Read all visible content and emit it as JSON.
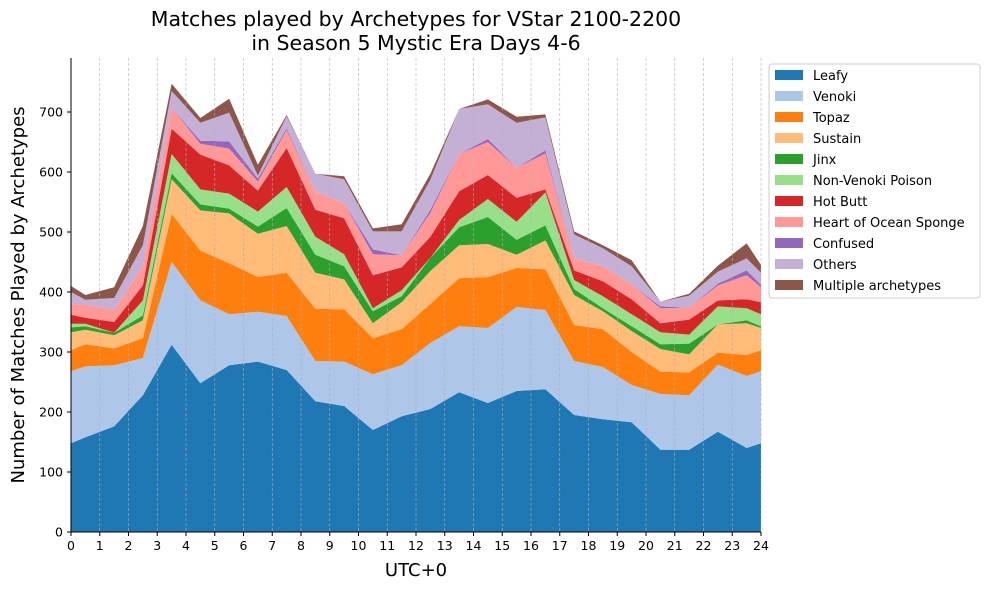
{
  "chart_data": {
    "type": "area",
    "stacked": true,
    "title": "Matches played by Archetypes for VStar 2100-2200\nin Season 5 Mystic Era Days 4-6",
    "xlabel": "UTC+0",
    "ylabel": "Number of Matches Played by Archetypes",
    "xlim": [
      0,
      24
    ],
    "ylim": [
      0,
      790
    ],
    "x_ticks": [
      0,
      1,
      2,
      3,
      4,
      5,
      6,
      7,
      8,
      9,
      10,
      11,
      12,
      13,
      14,
      15,
      16,
      17,
      18,
      19,
      20,
      21,
      22,
      23,
      24
    ],
    "y_ticks": [
      0,
      100,
      200,
      300,
      400,
      500,
      600,
      700
    ],
    "grid": "vertical dashed",
    "legend_position": "outside right, top",
    "x": [
      0,
      0.5,
      1.5,
      2.5,
      3.5,
      4.5,
      5.5,
      6.5,
      7.5,
      8.5,
      9.5,
      10.5,
      11.5,
      12.5,
      13.5,
      14.5,
      15.5,
      16.5,
      17.5,
      18.5,
      19.5,
      20.5,
      21.5,
      22.5,
      23.5,
      24
    ],
    "series": [
      {
        "name": "Leafy",
        "color": "#1f77b4",
        "values": [
          148,
          158,
          176,
          228,
          312,
          248,
          278,
          284,
          270,
          218,
          210,
          170,
          193,
          205,
          233,
          215,
          235,
          238,
          195,
          188,
          183,
          137,
          137,
          167,
          140,
          148
        ]
      },
      {
        "name": "Venoki",
        "color": "#aec7e8",
        "values": [
          120,
          118,
          102,
          62,
          138,
          138,
          85,
          83,
          90,
          67,
          74,
          93,
          85,
          110,
          110,
          125,
          140,
          132,
          90,
          87,
          62,
          93,
          91,
          112,
          120,
          120
        ]
      },
      {
        "name": "Topaz",
        "color": "#ff7f0e",
        "values": [
          35,
          37,
          28,
          33,
          80,
          83,
          85,
          58,
          72,
          87,
          87,
          60,
          60,
          65,
          80,
          85,
          65,
          68,
          60,
          63,
          55,
          37,
          38,
          20,
          35,
          35
        ]
      },
      {
        "name": "Sustain",
        "color": "#ffbb78",
        "values": [
          30,
          24,
          22,
          30,
          58,
          67,
          83,
          72,
          78,
          60,
          50,
          25,
          45,
          55,
          55,
          55,
          22,
          48,
          50,
          30,
          35,
          38,
          30,
          47,
          53,
          37
        ]
      },
      {
        "name": "Jinx",
        "color": "#2ca02c",
        "values": [
          8,
          6,
          4,
          8,
          10,
          10,
          8,
          12,
          30,
          30,
          22,
          20,
          10,
          22,
          30,
          45,
          25,
          25,
          10,
          5,
          8,
          8,
          18,
          0,
          5,
          3
        ]
      },
      {
        "name": "Non-Venoki Poison",
        "color": "#98df8a",
        "values": [
          6,
          4,
          0,
          25,
          32,
          25,
          25,
          25,
          35,
          30,
          20,
          5,
          10,
          0,
          12,
          30,
          30,
          55,
          15,
          20,
          20,
          20,
          15,
          30,
          20,
          20
        ]
      },
      {
        "name": "Hot Butt",
        "color": "#d62728",
        "values": [
          15,
          10,
          18,
          25,
          42,
          58,
          47,
          35,
          65,
          45,
          60,
          55,
          38,
          35,
          48,
          40,
          40,
          5,
          16,
          25,
          25,
          15,
          25,
          10,
          15,
          20
        ]
      },
      {
        "name": "Heart of Ocean Sponge",
        "color": "#ff9896",
        "values": [
          18,
          22,
          20,
          32,
          35,
          18,
          28,
          15,
          30,
          30,
          25,
          35,
          20,
          40,
          62,
          55,
          50,
          60,
          20,
          25,
          25,
          25,
          20,
          25,
          40,
          25
        ]
      },
      {
        "name": "Confused",
        "color": "#9467bd",
        "values": [
          0,
          0,
          0,
          0,
          0,
          5,
          12,
          5,
          3,
          0,
          0,
          8,
          0,
          5,
          0,
          5,
          0,
          5,
          0,
          0,
          0,
          3,
          0,
          3,
          8,
          4
        ]
      },
      {
        "name": "Others",
        "color": "#c5b0d5",
        "values": [
          20,
          8,
          20,
          35,
          28,
          30,
          48,
          5,
          20,
          30,
          40,
          30,
          40,
          50,
          75,
          58,
          75,
          55,
          40,
          30,
          30,
          8,
          20,
          20,
          20,
          20
        ]
      },
      {
        "name": "Multiple archetypes",
        "color": "#8c564b",
        "values": [
          10,
          8,
          18,
          32,
          12,
          8,
          23,
          18,
          2,
          0,
          5,
          5,
          12,
          10,
          0,
          8,
          10,
          5,
          5,
          5,
          10,
          0,
          3,
          10,
          25,
          13
        ]
      }
    ]
  }
}
